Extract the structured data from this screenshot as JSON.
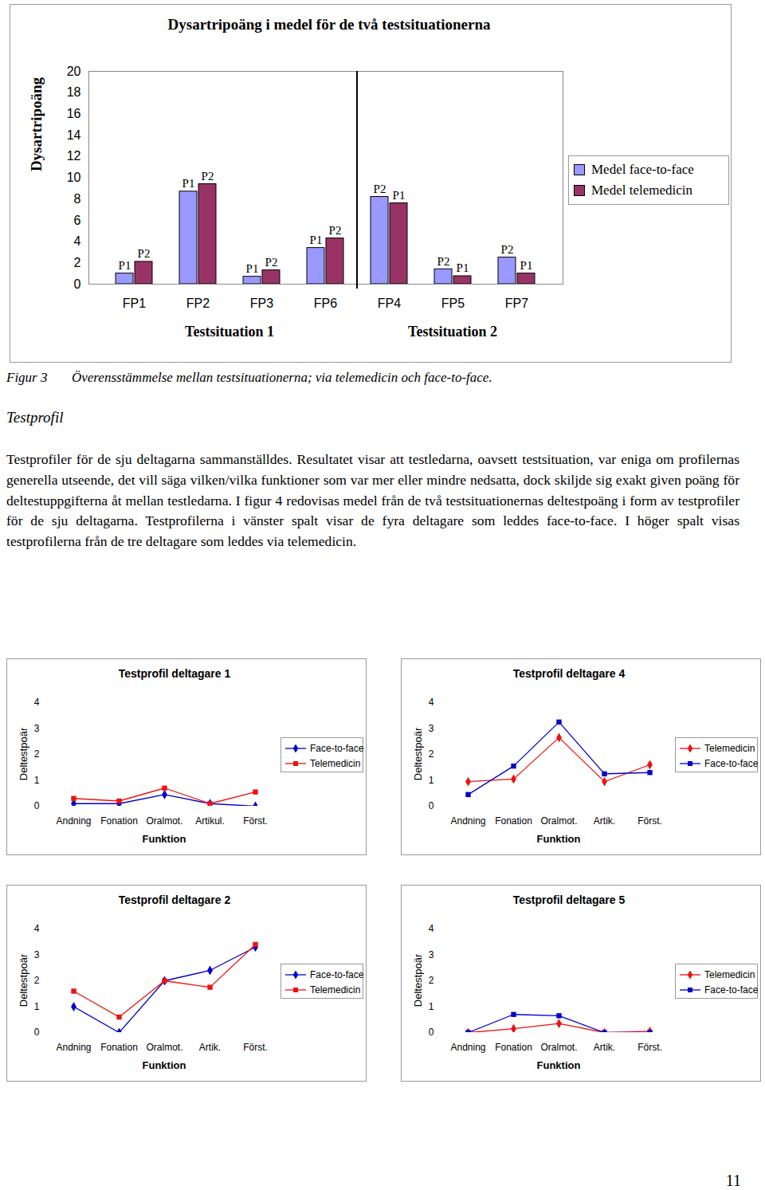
{
  "chart_data": [
    {
      "type": "bar",
      "title": "Dysartripoäng i medel för de två testsituationerna",
      "y_label": "Dysartripoäng",
      "categories": [
        "FP1",
        "FP2",
        "FP3",
        "FP6",
        "FP4",
        "FP5",
        "FP7"
      ],
      "series": [
        {
          "name": "Medel face-to-face",
          "color": "#9999ff",
          "values": [
            1.0,
            8.7,
            0.7,
            3.4,
            8.2,
            1.4,
            2.5
          ],
          "labels": [
            "P1",
            "P1",
            "P1",
            "P1",
            "P2",
            "P2",
            "P2"
          ]
        },
        {
          "name": "Medel telemedicin",
          "color": "#993366",
          "values": [
            2.1,
            9.4,
            1.3,
            4.3,
            7.6,
            0.75,
            1.0
          ],
          "labels": [
            "P2",
            "P2",
            "P2",
            "P2",
            "P1",
            "P1",
            "P1"
          ]
        }
      ],
      "groups": [
        {
          "label": "Testsituation 1",
          "categories": [
            "FP1",
            "FP2",
            "FP3",
            "FP6"
          ]
        },
        {
          "label": "Testsituation 2",
          "categories": [
            "FP4",
            "FP5",
            "FP7"
          ]
        }
      ],
      "ylim": [
        0,
        20
      ],
      "yticks": [
        0,
        2,
        4,
        6,
        8,
        10,
        12,
        14,
        16,
        18,
        20
      ],
      "legend": "right"
    },
    {
      "type": "line",
      "title": "Testprofil deltagare 1",
      "x_label": "Funktion",
      "y_label": "Deltestpoär",
      "categories": [
        "Andning",
        "Fonation",
        "Oralmot.",
        "Artikul.",
        "Först."
      ],
      "series": [
        {
          "name": "Face-to-face",
          "color": "#0000cc",
          "marker": "diamond",
          "values": [
            0.1,
            0.1,
            0.45,
            0.1,
            0.0
          ]
        },
        {
          "name": "Telemedicin",
          "color": "#ee1111",
          "marker": "square",
          "values": [
            0.3,
            0.2,
            0.7,
            0.1,
            0.55
          ]
        }
      ],
      "ylim": [
        0,
        4
      ],
      "yticks": [
        0,
        1,
        2,
        3,
        4
      ],
      "legend": "right"
    },
    {
      "type": "line",
      "title": "Testprofil deltagare 4",
      "x_label": "Funktion",
      "y_label": "Deltestpoär",
      "categories": [
        "Andning",
        "Fonation",
        "Oralmot.",
        "Artik.",
        "Först."
      ],
      "series": [
        {
          "name": "Telemedicin",
          "color": "#ee1111",
          "marker": "diamond",
          "values": [
            0.95,
            1.05,
            2.65,
            0.95,
            1.6
          ]
        },
        {
          "name": "Face-to-face",
          "color": "#0000cc",
          "marker": "square",
          "values": [
            0.45,
            1.55,
            3.25,
            1.25,
            1.3
          ]
        }
      ],
      "ylim": [
        0,
        4
      ],
      "yticks": [
        0,
        1,
        2,
        3,
        4
      ],
      "legend": "right"
    },
    {
      "type": "line",
      "title": "Testprofil deltagare 2",
      "x_label": "Funktion",
      "y_label": "Deltestpoär",
      "categories": [
        "Andning",
        "Fonation",
        "Oralmot.",
        "Artik.",
        "Först."
      ],
      "series": [
        {
          "name": "Face-to-face",
          "color": "#0000cc",
          "marker": "diamond",
          "values": [
            1.0,
            0.0,
            2.0,
            2.4,
            3.3
          ]
        },
        {
          "name": "Telemedicin",
          "color": "#ee1111",
          "marker": "square",
          "values": [
            1.6,
            0.6,
            2.0,
            1.75,
            3.4
          ]
        }
      ],
      "ylim": [
        0,
        4
      ],
      "yticks": [
        0,
        1,
        2,
        3,
        4
      ],
      "legend": "right"
    },
    {
      "type": "line",
      "title": "Testprofil deltagare 5",
      "x_label": "Funktion",
      "y_label": "Deltestpoär",
      "categories": [
        "Andning",
        "Fonation",
        "Oralmot.",
        "Artik.",
        "Först."
      ],
      "series": [
        {
          "name": "Telemedicin",
          "color": "#ee1111",
          "marker": "diamond",
          "values": [
            0.0,
            0.15,
            0.35,
            0.0,
            0.05
          ]
        },
        {
          "name": "Face-to-face",
          "color": "#0000cc",
          "marker": "square",
          "values": [
            0.0,
            0.7,
            0.65,
            0.0,
            0.0
          ]
        }
      ],
      "ylim": [
        0,
        4
      ],
      "yticks": [
        0,
        1,
        2,
        3,
        4
      ],
      "legend": "right"
    }
  ],
  "figure_caption": {
    "label": "Figur 3",
    "text": "Överensstämmelse mellan testsituationerna; via telemedicin och face-to-face."
  },
  "heading": "Testprofil",
  "paragraph": "Testprofiler för de sju deltagarna sammanställdes. Resultatet visar att testledarna, oavsett testsituation, var eniga om profilernas generella utseende, det vill säga vilken/vilka funktioner som var mer eller mindre nedsatta, dock skiljde sig exakt given poäng för deltestuppgifterna åt mellan testledarna. I figur 4 redovisas medel från de två testsituationernas deltestpoäng i form av testprofiler för de sju deltagarna. Testprofilerna i vänster spalt visar de fyra deltagare som leddes face-to-face. I höger spalt visas testprofilerna från de tre deltagare som leddes via telemedicin.",
  "page_number": 11
}
